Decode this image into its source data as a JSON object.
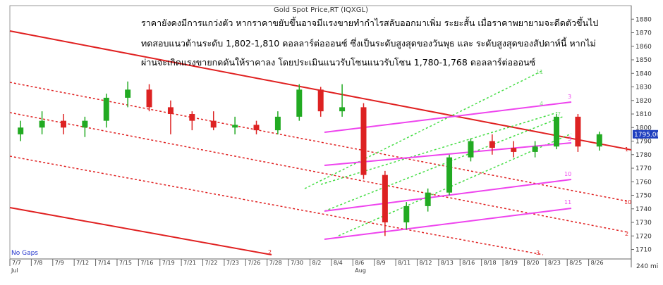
{
  "chart_data": {
    "type": "candlestick",
    "title": "Gold Spot Price,RT (IQXGL)",
    "commentary": [
      "ราคายังคงมีการแกว่งตัว หากราคาขยับขึ้นอาจมีแรงขายทำกำไรสลับออกมาเพิ่ม ระยะสั้น  เมื่อราคาพยายามจะดีดตัวขึ้นไป",
      "ทดสอบแนวต้านระดับ 1,802-1,810 ดอลลาร์ต่อออนซ์  ซึ่งเป็นระดับสูงสุดของวันพุธ และ ระดับสูงสุดของสัปดาห์นี้  หากไม่",
      "ผ่านจะเกิดแรงขายกดดันให้ราคาลง  โดยประเมินแนวรับโซนแนวรับโซน 1,780-1,768 ดอลลาร์ต่อออนซ์"
    ],
    "categories": [
      "7/7",
      "7/8",
      "7/9",
      "7/12",
      "7/14",
      "7/15",
      "7/16",
      "7/19",
      "7/21",
      "7/22",
      "7/23",
      "7/26",
      "7/28",
      "7/30",
      "8/2",
      "8/4",
      "8/6",
      "8/9",
      "8/11",
      "8/12",
      "8/13",
      "8/16",
      "8/18",
      "8/19",
      "8/20",
      "8/23",
      "8/25",
      "8/26"
    ],
    "months": [
      "Jul",
      "Aug"
    ],
    "open": [
      1795,
      1800,
      1805,
      1800,
      1805,
      1822,
      1828,
      1815,
      1810,
      1805,
      1800,
      1802,
      1798,
      1808,
      1828,
      1812,
      1815,
      1765,
      1730,
      1742,
      1752,
      1778,
      1790,
      1785,
      1782,
      1786,
      1808,
      1786
    ],
    "high": [
      1805,
      1812,
      1810,
      1808,
      1825,
      1834,
      1832,
      1820,
      1812,
      1812,
      1808,
      1805,
      1812,
      1832,
      1830,
      1832,
      1818,
      1768,
      1745,
      1755,
      1780,
      1792,
      1795,
      1790,
      1790,
      1810,
      1810,
      1797
    ],
    "low": [
      1790,
      1795,
      1795,
      1793,
      1800,
      1815,
      1812,
      1795,
      1798,
      1798,
      1795,
      1795,
      1795,
      1805,
      1808,
      1808,
      1762,
      1720,
      1725,
      1738,
      1750,
      1775,
      1780,
      1778,
      1778,
      1784,
      1782,
      1783
    ],
    "close": [
      1800,
      1805,
      1800,
      1805,
      1822,
      1828,
      1815,
      1810,
      1805,
      1800,
      1802,
      1798,
      1808,
      1828,
      1812,
      1815,
      1765,
      1730,
      1742,
      1752,
      1778,
      1790,
      1785,
      1782,
      1786,
      1808,
      1786,
      1795.06
    ],
    "last_price": 1795.06,
    "up_color": "#22aa22",
    "down_color": "#dd2222",
    "ylim": [
      1703,
      1890
    ],
    "yticks": [
      1710,
      1720,
      1730,
      1740,
      1750,
      1760,
      1770,
      1780,
      1790,
      1800,
      1810,
      1820,
      1830,
      1840,
      1850,
      1860,
      1870,
      1880
    ],
    "line_labels": [
      "1",
      "10",
      "2",
      "3",
      "2",
      "3",
      "7",
      "11",
      "10",
      "11",
      "3",
      "4"
    ],
    "gap_note": "No Gaps",
    "interval": "240 mi"
  }
}
